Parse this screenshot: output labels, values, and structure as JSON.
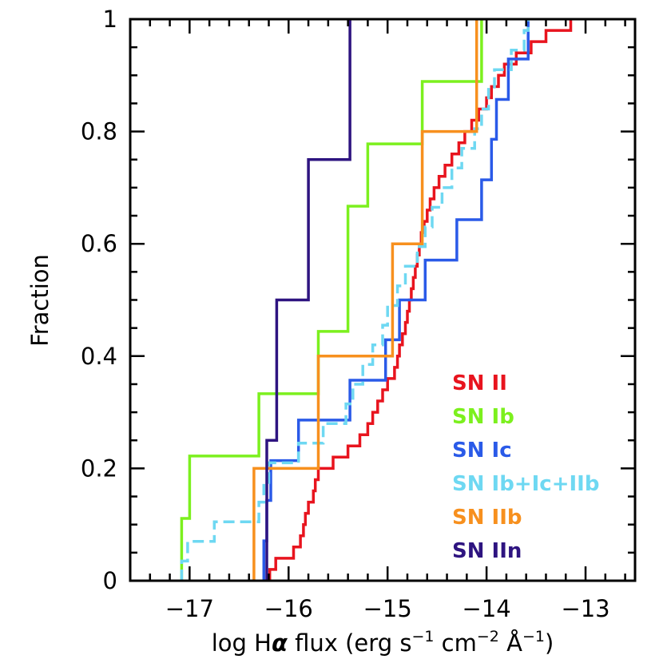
{
  "chart_data": {
    "type": "line",
    "subtype": "cumulative-step",
    "title": "",
    "xlabel_parts": {
      "prefix": "log H",
      "alpha": "α",
      "mid": " flux (erg s",
      "exp1": "−1",
      "mid2": " cm",
      "exp2": "−2",
      "angstrom": " Å",
      "exp3": "−1",
      "suffix": ")"
    },
    "ylabel": "Fraction",
    "xlim": [
      -17.6,
      -12.5
    ],
    "ylim": [
      0,
      1
    ],
    "x_major_ticks": [
      -17,
      -16,
      -15,
      -14,
      -13
    ],
    "x_tick_labels": [
      "−17",
      "−16",
      "−15",
      "−14",
      "−13"
    ],
    "x_minor_step": 0.2,
    "y_major_ticks": [
      0,
      0.2,
      0.4,
      0.6,
      0.8,
      1
    ],
    "y_tick_labels": [
      "0",
      "0.2",
      "0.4",
      "0.6",
      "0.8",
      "1"
    ],
    "y_minor_step": 0.05,
    "legend_position": "lower-right",
    "series": [
      {
        "name": "SN II",
        "color": "#e8141e",
        "dashed": false,
        "points": [
          [
            -16.19,
            0
          ],
          [
            -16.19,
            0.02
          ],
          [
            -16.13,
            0.02
          ],
          [
            -16.13,
            0.04
          ],
          [
            -15.95,
            0.04
          ],
          [
            -15.95,
            0.06
          ],
          [
            -15.88,
            0.06
          ],
          [
            -15.88,
            0.08
          ],
          [
            -15.85,
            0.08
          ],
          [
            -15.85,
            0.1
          ],
          [
            -15.83,
            0.1
          ],
          [
            -15.83,
            0.12
          ],
          [
            -15.8,
            0.12
          ],
          [
            -15.8,
            0.14
          ],
          [
            -15.75,
            0.14
          ],
          [
            -15.75,
            0.16
          ],
          [
            -15.73,
            0.16
          ],
          [
            -15.73,
            0.18
          ],
          [
            -15.7,
            0.18
          ],
          [
            -15.7,
            0.2
          ],
          [
            -15.55,
            0.2
          ],
          [
            -15.55,
            0.22
          ],
          [
            -15.4,
            0.22
          ],
          [
            -15.4,
            0.24
          ],
          [
            -15.28,
            0.24
          ],
          [
            -15.28,
            0.26
          ],
          [
            -15.2,
            0.26
          ],
          [
            -15.2,
            0.28
          ],
          [
            -15.15,
            0.28
          ],
          [
            -15.15,
            0.3
          ],
          [
            -15.1,
            0.3
          ],
          [
            -15.1,
            0.32
          ],
          [
            -15.05,
            0.32
          ],
          [
            -15.05,
            0.34
          ],
          [
            -15.0,
            0.34
          ],
          [
            -15.0,
            0.36
          ],
          [
            -14.93,
            0.36
          ],
          [
            -14.93,
            0.38
          ],
          [
            -14.9,
            0.38
          ],
          [
            -14.9,
            0.4
          ],
          [
            -14.88,
            0.4
          ],
          [
            -14.88,
            0.42
          ],
          [
            -14.85,
            0.42
          ],
          [
            -14.85,
            0.44
          ],
          [
            -14.82,
            0.44
          ],
          [
            -14.82,
            0.46
          ],
          [
            -14.8,
            0.46
          ],
          [
            -14.8,
            0.48
          ],
          [
            -14.78,
            0.48
          ],
          [
            -14.78,
            0.5
          ],
          [
            -14.76,
            0.5
          ],
          [
            -14.76,
            0.52
          ],
          [
            -14.74,
            0.52
          ],
          [
            -14.74,
            0.54
          ],
          [
            -14.72,
            0.54
          ],
          [
            -14.72,
            0.56
          ],
          [
            -14.7,
            0.56
          ],
          [
            -14.7,
            0.58
          ],
          [
            -14.68,
            0.58
          ],
          [
            -14.68,
            0.6
          ],
          [
            -14.66,
            0.6
          ],
          [
            -14.66,
            0.62
          ],
          [
            -14.63,
            0.62
          ],
          [
            -14.63,
            0.64
          ],
          [
            -14.6,
            0.64
          ],
          [
            -14.6,
            0.66
          ],
          [
            -14.57,
            0.66
          ],
          [
            -14.57,
            0.68
          ],
          [
            -14.53,
            0.68
          ],
          [
            -14.53,
            0.7
          ],
          [
            -14.48,
            0.7
          ],
          [
            -14.48,
            0.72
          ],
          [
            -14.42,
            0.72
          ],
          [
            -14.42,
            0.74
          ],
          [
            -14.35,
            0.74
          ],
          [
            -14.35,
            0.76
          ],
          [
            -14.28,
            0.76
          ],
          [
            -14.28,
            0.78
          ],
          [
            -14.22,
            0.78
          ],
          [
            -14.22,
            0.8
          ],
          [
            -14.15,
            0.8
          ],
          [
            -14.15,
            0.82
          ],
          [
            -14.08,
            0.82
          ],
          [
            -14.08,
            0.84
          ],
          [
            -14.0,
            0.84
          ],
          [
            -14.0,
            0.86
          ],
          [
            -13.95,
            0.86
          ],
          [
            -13.95,
            0.88
          ],
          [
            -13.88,
            0.88
          ],
          [
            -13.88,
            0.9
          ],
          [
            -13.82,
            0.9
          ],
          [
            -13.82,
            0.92
          ],
          [
            -13.7,
            0.92
          ],
          [
            -13.7,
            0.94
          ],
          [
            -13.55,
            0.94
          ],
          [
            -13.55,
            0.96
          ],
          [
            -13.4,
            0.96
          ],
          [
            -13.4,
            0.98
          ],
          [
            -13.15,
            0.98
          ],
          [
            -13.15,
            1.0
          ]
        ]
      },
      {
        "name": "SN Ib",
        "color": "#7cf01e",
        "dashed": false,
        "points": [
          [
            -17.08,
            0
          ],
          [
            -17.08,
            0.111
          ],
          [
            -17.0,
            0.111
          ],
          [
            -17.0,
            0.222
          ],
          [
            -16.3,
            0.222
          ],
          [
            -16.3,
            0.333
          ],
          [
            -15.7,
            0.333
          ],
          [
            -15.7,
            0.444
          ],
          [
            -15.4,
            0.444
          ],
          [
            -15.4,
            0.667
          ],
          [
            -15.2,
            0.667
          ],
          [
            -15.2,
            0.778
          ],
          [
            -14.65,
            0.778
          ],
          [
            -14.65,
            0.889
          ],
          [
            -14.05,
            0.889
          ],
          [
            -14.05,
            1.0
          ]
        ]
      },
      {
        "name": "SN Ic",
        "color": "#2a5ae8",
        "dashed": false,
        "points": [
          [
            -16.25,
            0
          ],
          [
            -16.25,
            0.071
          ],
          [
            -16.22,
            0.071
          ],
          [
            -16.22,
            0.143
          ],
          [
            -16.18,
            0.143
          ],
          [
            -16.18,
            0.214
          ],
          [
            -15.9,
            0.214
          ],
          [
            -15.9,
            0.286
          ],
          [
            -15.38,
            0.286
          ],
          [
            -15.38,
            0.357
          ],
          [
            -15.02,
            0.357
          ],
          [
            -15.02,
            0.429
          ],
          [
            -14.88,
            0.429
          ],
          [
            -14.88,
            0.5
          ],
          [
            -14.62,
            0.5
          ],
          [
            -14.62,
            0.571
          ],
          [
            -14.3,
            0.571
          ],
          [
            -14.3,
            0.643
          ],
          [
            -14.05,
            0.643
          ],
          [
            -14.05,
            0.714
          ],
          [
            -13.95,
            0.714
          ],
          [
            -13.95,
            0.786
          ],
          [
            -13.9,
            0.786
          ],
          [
            -13.9,
            0.857
          ],
          [
            -13.78,
            0.857
          ],
          [
            -13.78,
            0.929
          ],
          [
            -13.58,
            0.929
          ],
          [
            -13.58,
            1.0
          ]
        ]
      },
      {
        "name": "SN Ib+Ic+IIb",
        "color": "#6ed8f2",
        "dashed": true,
        "points": [
          [
            -17.08,
            0
          ],
          [
            -17.08,
            0.035
          ],
          [
            -17.02,
            0.035
          ],
          [
            -17.02,
            0.07
          ],
          [
            -16.75,
            0.07
          ],
          [
            -16.75,
            0.105
          ],
          [
            -16.3,
            0.105
          ],
          [
            -16.3,
            0.14
          ],
          [
            -16.25,
            0.14
          ],
          [
            -16.25,
            0.175
          ],
          [
            -16.2,
            0.175
          ],
          [
            -16.2,
            0.21
          ],
          [
            -15.9,
            0.21
          ],
          [
            -15.9,
            0.245
          ],
          [
            -15.65,
            0.245
          ],
          [
            -15.65,
            0.28
          ],
          [
            -15.42,
            0.28
          ],
          [
            -15.42,
            0.315
          ],
          [
            -15.35,
            0.315
          ],
          [
            -15.35,
            0.35
          ],
          [
            -15.25,
            0.35
          ],
          [
            -15.25,
            0.385
          ],
          [
            -15.15,
            0.385
          ],
          [
            -15.15,
            0.42
          ],
          [
            -15.05,
            0.42
          ],
          [
            -15.05,
            0.455
          ],
          [
            -15.0,
            0.455
          ],
          [
            -15.0,
            0.49
          ],
          [
            -14.9,
            0.49
          ],
          [
            -14.9,
            0.525
          ],
          [
            -14.82,
            0.525
          ],
          [
            -14.82,
            0.56
          ],
          [
            -14.7,
            0.56
          ],
          [
            -14.7,
            0.595
          ],
          [
            -14.62,
            0.595
          ],
          [
            -14.62,
            0.63
          ],
          [
            -14.55,
            0.63
          ],
          [
            -14.55,
            0.665
          ],
          [
            -14.45,
            0.665
          ],
          [
            -14.45,
            0.7
          ],
          [
            -14.35,
            0.7
          ],
          [
            -14.35,
            0.735
          ],
          [
            -14.25,
            0.735
          ],
          [
            -14.25,
            0.77
          ],
          [
            -14.12,
            0.77
          ],
          [
            -14.12,
            0.805
          ],
          [
            -14.05,
            0.805
          ],
          [
            -14.05,
            0.84
          ],
          [
            -13.98,
            0.84
          ],
          [
            -13.98,
            0.875
          ],
          [
            -13.92,
            0.875
          ],
          [
            -13.92,
            0.91
          ],
          [
            -13.75,
            0.91
          ],
          [
            -13.75,
            0.945
          ],
          [
            -13.62,
            0.945
          ],
          [
            -13.62,
            0.98
          ],
          [
            -13.58,
            0.98
          ],
          [
            -13.58,
            1.0
          ]
        ]
      },
      {
        "name": "SN IIb",
        "color": "#f7901e",
        "dashed": false,
        "points": [
          [
            -16.35,
            0
          ],
          [
            -16.35,
            0.2
          ],
          [
            -15.7,
            0.2
          ],
          [
            -15.7,
            0.4
          ],
          [
            -14.95,
            0.4
          ],
          [
            -14.95,
            0.6
          ],
          [
            -14.65,
            0.6
          ],
          [
            -14.65,
            0.8
          ],
          [
            -14.1,
            0.8
          ],
          [
            -14.1,
            1.0
          ]
        ]
      },
      {
        "name": "SN IIn",
        "color": "#2e1480",
        "dashed": false,
        "points": [
          [
            -16.22,
            0
          ],
          [
            -16.22,
            0.25
          ],
          [
            -16.12,
            0.25
          ],
          [
            -16.12,
            0.5
          ],
          [
            -15.8,
            0.5
          ],
          [
            -15.8,
            0.75
          ],
          [
            -15.38,
            0.75
          ],
          [
            -15.38,
            1.0
          ]
        ]
      }
    ]
  }
}
